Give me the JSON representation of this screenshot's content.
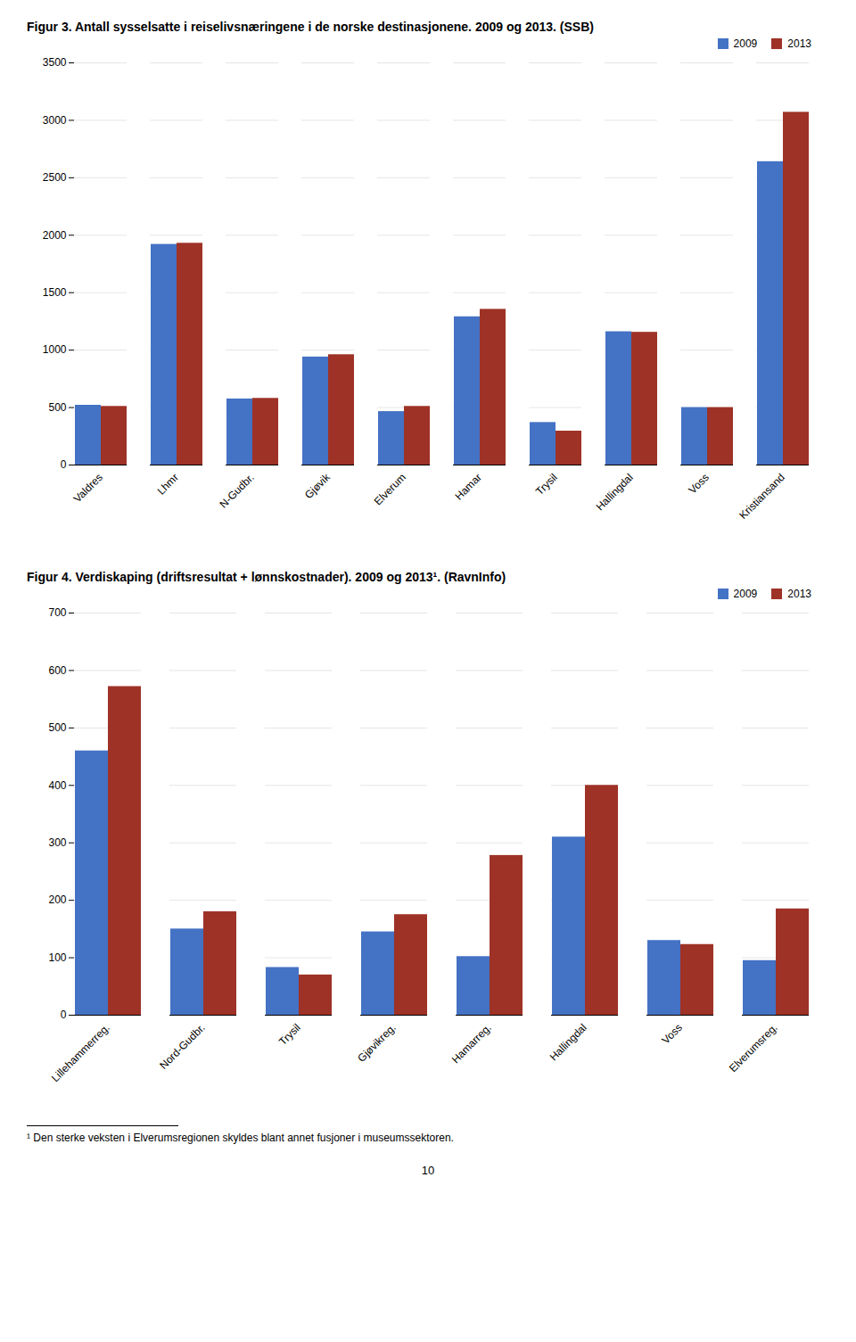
{
  "chart_data": [
    {
      "type": "bar",
      "title": "Figur 3. Antall sysselsatte i reiselivsnæringene i de norske destinasjonene. 2009 og 2013. (SSB)",
      "categories": [
        "Valdres",
        "Lhmr",
        "N-Gudbr.",
        "Gjøvik",
        "Elverum",
        "Hamar",
        "Trysil",
        "Hallingdal",
        "Voss",
        "Kristiansand"
      ],
      "series": [
        {
          "name": "2009",
          "color": "#4472C4",
          "values": [
            520,
            1920,
            575,
            940,
            465,
            1290,
            370,
            1160,
            500,
            2640
          ]
        },
        {
          "name": "2013",
          "color": "#9E3226",
          "values": [
            510,
            1930,
            580,
            960,
            510,
            1355,
            295,
            1155,
            500,
            3070
          ]
        }
      ],
      "ylim": [
        0,
        3500
      ],
      "yticks": [
        0,
        500,
        1000,
        1500,
        2000,
        2500,
        3000,
        3500
      ],
      "grid": true,
      "legend": "upper right"
    },
    {
      "type": "bar",
      "title": "Figur 4. Verdiskaping (driftsresultat + lønnskostnader). 2009 og 2013¹. (RavnInfo)",
      "categories": [
        "Lillehammerreg.",
        "Nord-Gudbr.",
        "Trysil",
        "Gjøvikreg.",
        "Hamarreg.",
        "Hallingdal",
        "Voss",
        "Elverumsreg."
      ],
      "series": [
        {
          "name": "2009",
          "color": "#4472C4",
          "values": [
            460,
            150,
            83,
            145,
            102,
            310,
            130,
            95
          ]
        },
        {
          "name": "2013",
          "color": "#9E3226",
          "values": [
            572,
            180,
            70,
            175,
            278,
            400,
            123,
            185
          ]
        }
      ],
      "ylim": [
        0,
        700
      ],
      "yticks": [
        0,
        100,
        200,
        300,
        400,
        500,
        600,
        700
      ],
      "grid": true,
      "legend": "upper right",
      "annotations": [
        "¹ Den sterke veksten i Elverumsregionen skyldes blant annet fusjoner i museumssektoren.",
        "10"
      ]
    }
  ]
}
